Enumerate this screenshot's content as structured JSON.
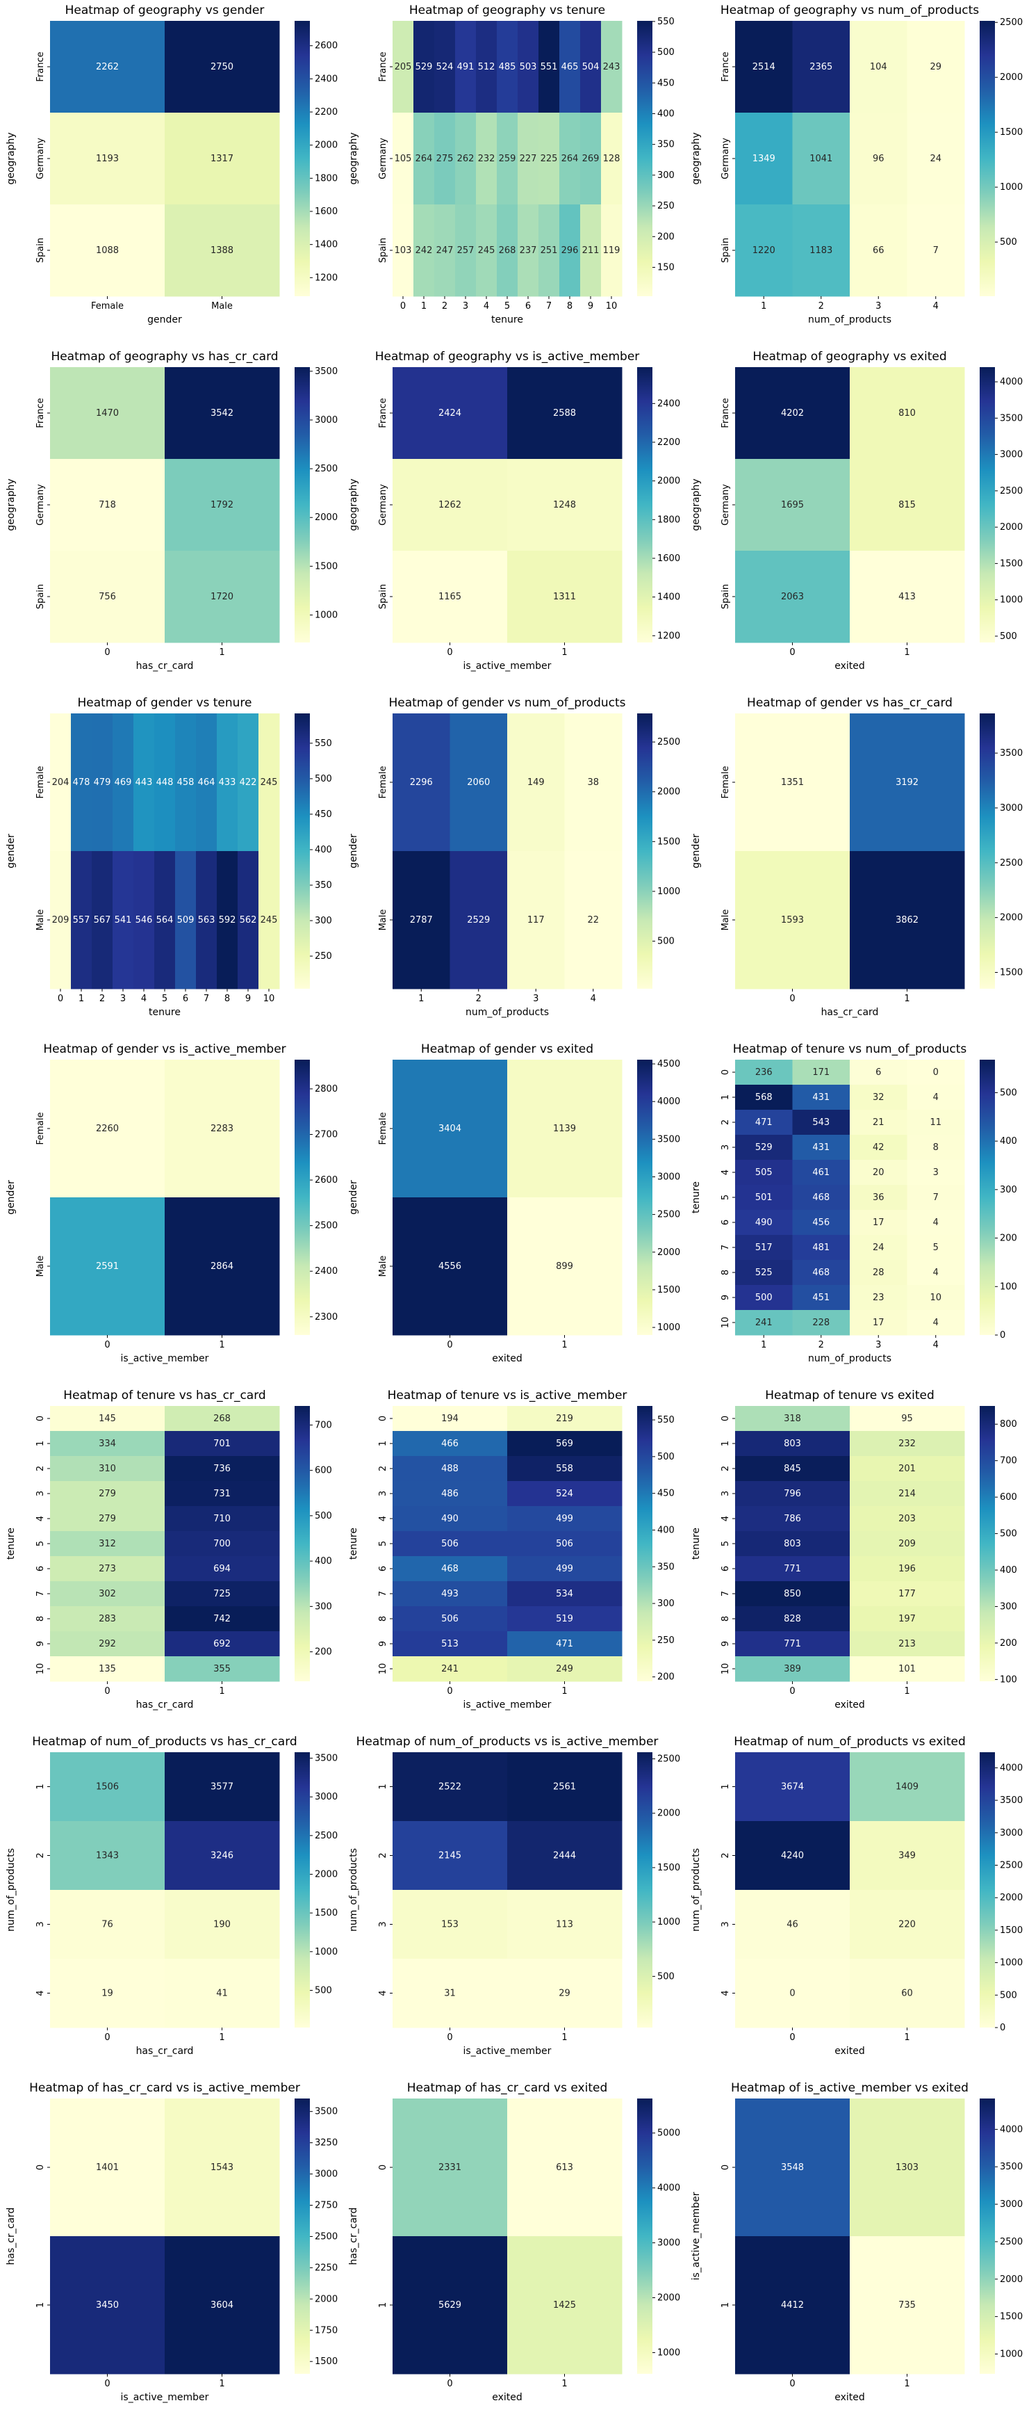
{
  "palette": [
    "#ffffd9",
    "#edf8b1",
    "#c7e9b4",
    "#7fcdbb",
    "#41b6c4",
    "#1d91c0",
    "#225ea8",
    "#253494",
    "#081d58"
  ],
  "chart_data": [
    {
      "type": "heatmap",
      "title": "Heatmap of geography vs gender",
      "xlabel": "gender",
      "ylabel": "geography",
      "x_categories": [
        "Female",
        "Male"
      ],
      "y_categories": [
        "France",
        "Germany",
        "Spain"
      ],
      "values": [
        [
          2262,
          2750
        ],
        [
          1193,
          1317
        ],
        [
          1088,
          1388
        ]
      ],
      "colorbar_ticks": [
        1200,
        1400,
        1600,
        1800,
        2000,
        2200,
        2400,
        2600
      ]
    },
    {
      "type": "heatmap",
      "title": "Heatmap of geography vs tenure",
      "xlabel": "tenure",
      "ylabel": "geography",
      "x_categories": [
        "0",
        "1",
        "2",
        "3",
        "4",
        "5",
        "6",
        "7",
        "8",
        "9",
        "10"
      ],
      "y_categories": [
        "France",
        "Germany",
        "Spain"
      ],
      "values": [
        [
          205,
          529,
          524,
          491,
          512,
          485,
          503,
          551,
          465,
          504,
          243
        ],
        [
          105,
          264,
          275,
          262,
          232,
          259,
          227,
          225,
          264,
          269,
          128
        ],
        [
          103,
          242,
          247,
          257,
          245,
          268,
          237,
          251,
          296,
          211,
          119
        ]
      ],
      "colorbar_ticks": [
        150,
        200,
        250,
        300,
        350,
        400,
        450,
        500,
        550
      ]
    },
    {
      "type": "heatmap",
      "title": "Heatmap of geography vs num_of_products",
      "xlabel": "num_of_products",
      "ylabel": "geography",
      "x_categories": [
        "1",
        "2",
        "3",
        "4"
      ],
      "y_categories": [
        "France",
        "Germany",
        "Spain"
      ],
      "values": [
        [
          2514,
          2365,
          104,
          29
        ],
        [
          1349,
          1041,
          96,
          24
        ],
        [
          1220,
          1183,
          66,
          7
        ]
      ],
      "colorbar_ticks": [
        500,
        1000,
        1500,
        2000,
        2500
      ]
    },
    {
      "type": "heatmap",
      "title": "Heatmap of geography vs has_cr_card",
      "xlabel": "has_cr_card",
      "ylabel": "geography",
      "x_categories": [
        "0",
        "1"
      ],
      "y_categories": [
        "France",
        "Germany",
        "Spain"
      ],
      "values": [
        [
          1470,
          3542
        ],
        [
          718,
          1792
        ],
        [
          756,
          1720
        ]
      ],
      "colorbar_ticks": [
        1000,
        1500,
        2000,
        2500,
        3000,
        3500
      ]
    },
    {
      "type": "heatmap",
      "title": "Heatmap of geography vs is_active_member",
      "xlabel": "is_active_member",
      "ylabel": "geography",
      "x_categories": [
        "0",
        "1"
      ],
      "y_categories": [
        "France",
        "Germany",
        "Spain"
      ],
      "values": [
        [
          2424,
          2588
        ],
        [
          1262,
          1248
        ],
        [
          1165,
          1311
        ]
      ],
      "colorbar_ticks": [
        1200,
        1400,
        1600,
        1800,
        2000,
        2200,
        2400
      ]
    },
    {
      "type": "heatmap",
      "title": "Heatmap of geography vs exited",
      "xlabel": "exited",
      "ylabel": "geography",
      "x_categories": [
        "0",
        "1"
      ],
      "y_categories": [
        "France",
        "Germany",
        "Spain"
      ],
      "values": [
        [
          4202,
          810
        ],
        [
          1695,
          815
        ],
        [
          2063,
          413
        ]
      ],
      "colorbar_ticks": [
        500,
        1000,
        1500,
        2000,
        2500,
        3000,
        3500,
        4000
      ]
    },
    {
      "type": "heatmap",
      "title": "Heatmap of gender vs tenure",
      "xlabel": "tenure",
      "ylabel": "gender",
      "x_categories": [
        "0",
        "1",
        "2",
        "3",
        "4",
        "5",
        "6",
        "7",
        "8",
        "9",
        "10"
      ],
      "y_categories": [
        "Female",
        "Male"
      ],
      "values": [
        [
          204,
          478,
          479,
          469,
          443,
          448,
          458,
          464,
          433,
          422,
          245
        ],
        [
          209,
          557,
          567,
          541,
          546,
          564,
          509,
          563,
          592,
          562,
          245
        ]
      ],
      "colorbar_ticks": [
        250,
        300,
        350,
        400,
        450,
        500,
        550
      ]
    },
    {
      "type": "heatmap",
      "title": "Heatmap of gender vs num_of_products",
      "xlabel": "num_of_products",
      "ylabel": "gender",
      "x_categories": [
        "1",
        "2",
        "3",
        "4"
      ],
      "y_categories": [
        "Female",
        "Male"
      ],
      "values": [
        [
          2296,
          2060,
          149,
          38
        ],
        [
          2787,
          2529,
          117,
          22
        ]
      ],
      "colorbar_ticks": [
        500,
        1000,
        1500,
        2000,
        2500
      ]
    },
    {
      "type": "heatmap",
      "title": "Heatmap of gender vs has_cr_card",
      "xlabel": "has_cr_card",
      "ylabel": "gender",
      "x_categories": [
        "0",
        "1"
      ],
      "y_categories": [
        "Female",
        "Male"
      ],
      "values": [
        [
          1351,
          3192
        ],
        [
          1593,
          3862
        ]
      ],
      "colorbar_ticks": [
        1500,
        2000,
        2500,
        3000,
        3500
      ]
    },
    {
      "type": "heatmap",
      "title": "Heatmap of gender vs is_active_member",
      "xlabel": "is_active_member",
      "ylabel": "gender",
      "x_categories": [
        "0",
        "1"
      ],
      "y_categories": [
        "Female",
        "Male"
      ],
      "values": [
        [
          2260,
          2283
        ],
        [
          2591,
          2864
        ]
      ],
      "colorbar_ticks": [
        2300,
        2400,
        2500,
        2600,
        2700,
        2800
      ]
    },
    {
      "type": "heatmap",
      "title": "Heatmap of gender vs exited",
      "xlabel": "exited",
      "ylabel": "gender",
      "x_categories": [
        "0",
        "1"
      ],
      "y_categories": [
        "Female",
        "Male"
      ],
      "values": [
        [
          3404,
          1139
        ],
        [
          4556,
          899
        ]
      ],
      "colorbar_ticks": [
        1000,
        1500,
        2000,
        2500,
        3000,
        3500,
        4000,
        4500
      ]
    },
    {
      "type": "heatmap",
      "title": "Heatmap of tenure vs num_of_products",
      "xlabel": "num_of_products",
      "ylabel": "tenure",
      "x_categories": [
        "1",
        "2",
        "3",
        "4"
      ],
      "y_categories": [
        "0",
        "1",
        "2",
        "3",
        "4",
        "5",
        "6",
        "7",
        "8",
        "9",
        "10"
      ],
      "values": [
        [
          236,
          171,
          6,
          0
        ],
        [
          568,
          431,
          32,
          4
        ],
        [
          471,
          543,
          21,
          11
        ],
        [
          529,
          431,
          42,
          8
        ],
        [
          505,
          461,
          20,
          3
        ],
        [
          501,
          468,
          36,
          7
        ],
        [
          490,
          456,
          17,
          4
        ],
        [
          517,
          481,
          24,
          5
        ],
        [
          525,
          468,
          28,
          4
        ],
        [
          500,
          451,
          23,
          10
        ],
        [
          241,
          228,
          17,
          4
        ]
      ],
      "colorbar_ticks": [
        0,
        100,
        200,
        300,
        400,
        500
      ]
    },
    {
      "type": "heatmap",
      "title": "Heatmap of tenure vs has_cr_card",
      "xlabel": "has_cr_card",
      "ylabel": "tenure",
      "x_categories": [
        "0",
        "1"
      ],
      "y_categories": [
        "0",
        "1",
        "2",
        "3",
        "4",
        "5",
        "6",
        "7",
        "8",
        "9",
        "10"
      ],
      "values": [
        [
          145,
          268
        ],
        [
          334,
          701
        ],
        [
          310,
          736
        ],
        [
          279,
          731
        ],
        [
          279,
          710
        ],
        [
          312,
          700
        ],
        [
          273,
          694
        ],
        [
          302,
          725
        ],
        [
          283,
          742
        ],
        [
          292,
          692
        ],
        [
          135,
          355
        ]
      ],
      "colorbar_ticks": [
        200,
        300,
        400,
        500,
        600,
        700
      ]
    },
    {
      "type": "heatmap",
      "title": "Heatmap of tenure vs is_active_member",
      "xlabel": "is_active_member",
      "ylabel": "tenure",
      "x_categories": [
        "0",
        "1"
      ],
      "y_categories": [
        "0",
        "1",
        "2",
        "3",
        "4",
        "5",
        "6",
        "7",
        "8",
        "9",
        "10"
      ],
      "values": [
        [
          194,
          219
        ],
        [
          466,
          569
        ],
        [
          488,
          558
        ],
        [
          486,
          524
        ],
        [
          490,
          499
        ],
        [
          506,
          506
        ],
        [
          468,
          499
        ],
        [
          493,
          534
        ],
        [
          506,
          519
        ],
        [
          513,
          471
        ],
        [
          241,
          249
        ]
      ],
      "colorbar_ticks": [
        200,
        250,
        300,
        350,
        400,
        450,
        500,
        550
      ]
    },
    {
      "type": "heatmap",
      "title": "Heatmap of tenure vs exited",
      "xlabel": "exited",
      "ylabel": "tenure",
      "x_categories": [
        "0",
        "1"
      ],
      "y_categories": [
        "0",
        "1",
        "2",
        "3",
        "4",
        "5",
        "6",
        "7",
        "8",
        "9",
        "10"
      ],
      "values": [
        [
          318,
          95
        ],
        [
          803,
          232
        ],
        [
          845,
          201
        ],
        [
          796,
          214
        ],
        [
          786,
          203
        ],
        [
          803,
          209
        ],
        [
          771,
          196
        ],
        [
          850,
          177
        ],
        [
          828,
          197
        ],
        [
          771,
          213
        ],
        [
          389,
          101
        ]
      ],
      "colorbar_ticks": [
        100,
        200,
        300,
        400,
        500,
        600,
        700,
        800
      ]
    },
    {
      "type": "heatmap",
      "title": "Heatmap of num_of_products vs has_cr_card",
      "xlabel": "has_cr_card",
      "ylabel": "num_of_products",
      "x_categories": [
        "0",
        "1"
      ],
      "y_categories": [
        "1",
        "2",
        "3",
        "4"
      ],
      "values": [
        [
          1506,
          3577
        ],
        [
          1343,
          3246
        ],
        [
          76,
          190
        ],
        [
          19,
          41
        ]
      ],
      "colorbar_ticks": [
        500,
        1000,
        1500,
        2000,
        2500,
        3000,
        3500
      ]
    },
    {
      "type": "heatmap",
      "title": "Heatmap of num_of_products vs is_active_member",
      "xlabel": "is_active_member",
      "ylabel": "num_of_products",
      "x_categories": [
        "0",
        "1"
      ],
      "y_categories": [
        "1",
        "2",
        "3",
        "4"
      ],
      "values": [
        [
          2522,
          2561
        ],
        [
          2145,
          2444
        ],
        [
          153,
          113
        ],
        [
          31,
          29
        ]
      ],
      "colorbar_ticks": [
        500,
        1000,
        1500,
        2000,
        2500
      ]
    },
    {
      "type": "heatmap",
      "title": "Heatmap of num_of_products vs exited",
      "xlabel": "exited",
      "ylabel": "num_of_products",
      "x_categories": [
        "0",
        "1"
      ],
      "y_categories": [
        "1",
        "2",
        "3",
        "4"
      ],
      "values": [
        [
          3674,
          1409
        ],
        [
          4240,
          349
        ],
        [
          46,
          220
        ],
        [
          0,
          60
        ]
      ],
      "colorbar_ticks": [
        0,
        500,
        1000,
        1500,
        2000,
        2500,
        3000,
        3500,
        4000
      ]
    },
    {
      "type": "heatmap",
      "title": "Heatmap of has_cr_card vs is_active_member",
      "xlabel": "is_active_member",
      "ylabel": "has_cr_card",
      "x_categories": [
        "0",
        "1"
      ],
      "y_categories": [
        "0",
        "1"
      ],
      "values": [
        [
          1401,
          1543
        ],
        [
          3450,
          3604
        ]
      ],
      "colorbar_ticks": [
        1500,
        1750,
        2000,
        2250,
        2500,
        2750,
        3000,
        3250,
        3500
      ]
    },
    {
      "type": "heatmap",
      "title": "Heatmap of has_cr_card vs exited",
      "xlabel": "exited",
      "ylabel": "has_cr_card",
      "x_categories": [
        "0",
        "1"
      ],
      "y_categories": [
        "0",
        "1"
      ],
      "values": [
        [
          2331,
          613
        ],
        [
          5629,
          1425
        ]
      ],
      "colorbar_ticks": [
        1000,
        2000,
        3000,
        4000,
        5000
      ]
    },
    {
      "type": "heatmap",
      "title": "Heatmap of is_active_member vs exited",
      "xlabel": "exited",
      "ylabel": "is_active_member",
      "x_categories": [
        "0",
        "1"
      ],
      "y_categories": [
        "0",
        "1"
      ],
      "values": [
        [
          3548,
          1303
        ],
        [
          4412,
          735
        ]
      ],
      "colorbar_ticks": [
        1000,
        1500,
        2000,
        2500,
        3000,
        3500,
        4000
      ]
    }
  ]
}
